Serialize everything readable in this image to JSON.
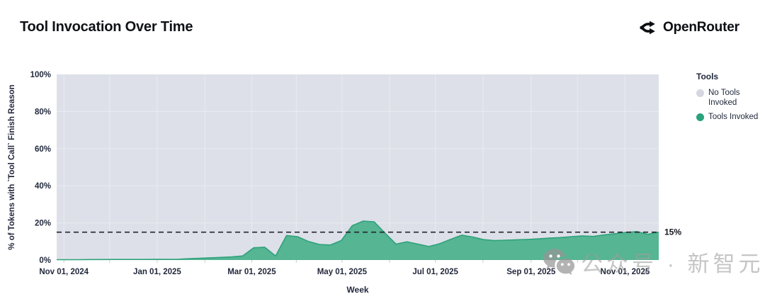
{
  "header": {
    "title": "Tool Invocation Over Time"
  },
  "logo": {
    "text": "OpenRouter",
    "icon": "route-split-arrows-icon",
    "color": "#0b0d12"
  },
  "legend": {
    "title": "Tools",
    "items": [
      {
        "label": "No Tools Invoked",
        "color": "#d4d7df"
      },
      {
        "label": "Tools Invoked",
        "color": "#2aa37c"
      }
    ]
  },
  "watermark": {
    "icon": "wechat-icon",
    "text": "公众号 · 新智元"
  },
  "chart_data": {
    "type": "area",
    "stacked_percent": true,
    "title": "Tool Invocation Over Time",
    "xlabel": "Week",
    "ylabel": "% of Tokens with `Tool Call` Finish Reason",
    "ylim": [
      0,
      100
    ],
    "grid": true,
    "legend_position": "right",
    "y_ticks": [
      {
        "label": "0%",
        "value": 0
      },
      {
        "label": "20%",
        "value": 20
      },
      {
        "label": "40%",
        "value": 40
      },
      {
        "label": "60%",
        "value": 60
      },
      {
        "label": "80%",
        "value": 80
      },
      {
        "label": "100%",
        "value": 100
      }
    ],
    "x_ticks": [
      {
        "label": "Nov 01, 2024",
        "pos": 0.012
      },
      {
        "label": "Jan 01, 2025",
        "pos": 0.167
      },
      {
        "label": "Mar 01, 2025",
        "pos": 0.324
      },
      {
        "label": "May 01, 2025",
        "pos": 0.474
      },
      {
        "label": "Jul 01, 2025",
        "pos": 0.629
      },
      {
        "label": "Sep 01, 2025",
        "pos": 0.788
      },
      {
        "label": "Nov 01, 2025",
        "pos": 0.944
      }
    ],
    "x_gridline_positions": [
      0.012,
      0.088,
      0.167,
      0.246,
      0.324,
      0.398,
      0.474,
      0.553,
      0.629,
      0.708,
      0.788,
      0.865,
      0.944
    ],
    "series": [
      {
        "name": "Tools Invoked",
        "unit": "percent",
        "fill_color": "#56b593",
        "line_color": "#2ea27b",
        "x_unit": "week",
        "values": [
          0.2,
          0.2,
          0.2,
          0.25,
          0.25,
          0.3,
          0.3,
          0.3,
          0.3,
          0.35,
          0.35,
          0.4,
          0.7,
          0.9,
          1.2,
          1.4,
          1.7,
          2.2,
          6.6,
          6.9,
          2.2,
          13.2,
          12.6,
          10.0,
          8.4,
          8.1,
          10.5,
          18.5,
          21.0,
          20.6,
          14.5,
          8.6,
          9.8,
          8.6,
          7.3,
          8.8,
          11.2,
          13.4,
          12.4,
          11.0,
          10.5,
          10.7,
          10.9,
          11.1,
          11.4,
          11.8,
          12.1,
          12.6,
          13.0,
          12.7,
          13.5,
          14.2,
          14.9,
          15.3,
          13.9,
          15.0
        ]
      },
      {
        "name": "No Tools Invoked",
        "unit": "percent",
        "fill_color": "#dde0e8",
        "note": "complement of Tools Invoked up to 100%"
      }
    ],
    "reference_line": {
      "value": 15,
      "label": "15%",
      "style": "dashed",
      "color": "#23252d"
    },
    "colors": {
      "plot_background": "#dde0e8",
      "gridline": "#e9ebf1",
      "axis_text": "#232a3d",
      "tick_mark": "#c9cdd6"
    }
  }
}
